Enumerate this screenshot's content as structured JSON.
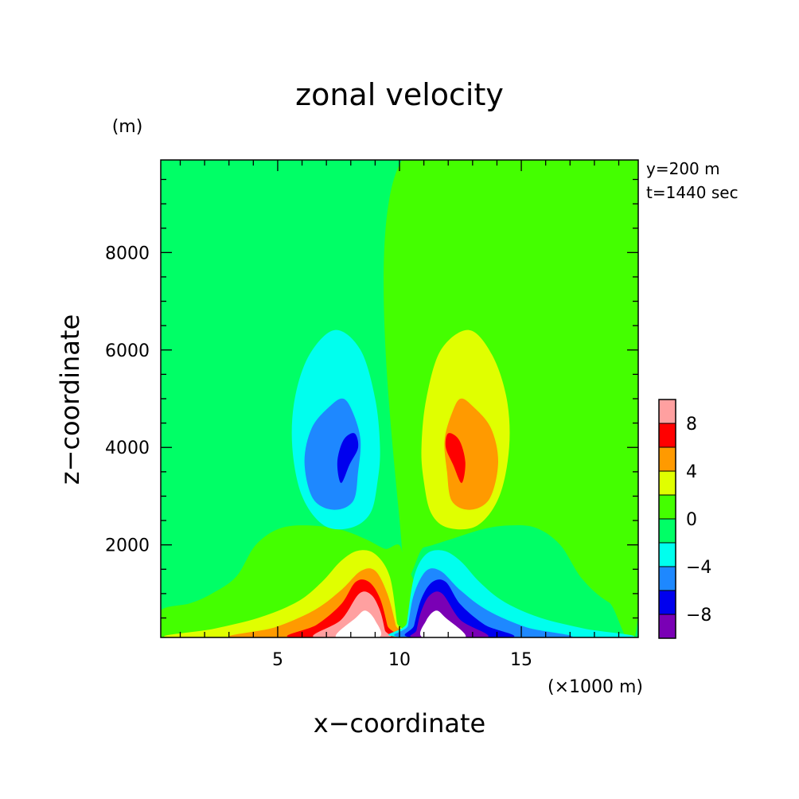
{
  "chart_data": {
    "type": "heatmap",
    "title": "zonal velocity",
    "xlabel": "x−coordinate",
    "ylabel": "z−coordinate",
    "x_unit": "(×1000 m)",
    "y_unit": "(m)",
    "annotations": [
      "y=200 m",
      "t=1440 sec"
    ],
    "xlim": [
      0.2,
      19.8
    ],
    "ylim": [
      100,
      9900
    ],
    "x_ticks": [
      5,
      10,
      15
    ],
    "y_ticks": [
      2000,
      4000,
      6000,
      8000
    ],
    "x_ticklabels": [
      "5",
      "10",
      "15"
    ],
    "y_ticklabels": [
      "2000",
      "4000",
      "6000",
      "8000"
    ],
    "grid": false,
    "legend": "colorbar-right",
    "colorbar": {
      "ticks": [
        8,
        4,
        0,
        -4,
        -8
      ],
      "ticklabels": [
        "8",
        "4",
        "0",
        "−4",
        "−8"
      ],
      "levels": [
        {
          "min": -10,
          "max": -8,
          "color": "#7a00b5"
        },
        {
          "min": -8,
          "max": -6,
          "color": "#0000ee"
        },
        {
          "min": -6,
          "max": -4,
          "color": "#1e88ff"
        },
        {
          "min": -4,
          "max": -2,
          "color": "#00ffee"
        },
        {
          "min": -2,
          "max": 0,
          "color": "#00ff66"
        },
        {
          "min": 0,
          "max": 2,
          "color": "#44ff00"
        },
        {
          "min": 2,
          "max": 4,
          "color": "#e0ff00"
        },
        {
          "min": 4,
          "max": 6,
          "color": "#ff9a00"
        },
        {
          "min": 6,
          "max": 8,
          "color": "#ff0000"
        },
        {
          "min": 8,
          "max": 10,
          "color": "#ffa0a0"
        }
      ]
    },
    "contour_regions": [
      {
        "level": "0 to 2",
        "color": "#44ff00",
        "points": [
          [
            10.1,
            9900
          ],
          [
            19.8,
            9900
          ],
          [
            19.8,
            650
          ],
          [
            18.6,
            820
          ],
          [
            17.5,
            1300
          ],
          [
            16.6,
            2000
          ],
          [
            15.6,
            2350
          ],
          [
            14.5,
            2400
          ],
          [
            13.4,
            2320
          ],
          [
            12.0,
            2100
          ],
          [
            11.0,
            1950
          ],
          [
            10.1,
            1900
          ]
        ]
      },
      {
        "level": "0 to 2",
        "color": "#44ff00",
        "points": [
          [
            0.2,
            650
          ],
          [
            1.4,
            800
          ],
          [
            2.3,
            1000
          ],
          [
            3.3,
            1350
          ],
          [
            4.1,
            2000
          ],
          [
            5.1,
            2340
          ],
          [
            6.3,
            2400
          ],
          [
            7.6,
            2310
          ],
          [
            8.6,
            2120
          ],
          [
            9.4,
            1920
          ],
          [
            10.1,
            1870
          ],
          [
            10.1,
            100
          ],
          [
            0.2,
            100
          ]
        ]
      },
      {
        "level": "2 to 4",
        "color": "#e0ff00",
        "points": [
          [
            12.85,
            6410
          ],
          [
            13.8,
            5900
          ],
          [
            14.4,
            5000
          ],
          [
            14.5,
            4000
          ],
          [
            14.1,
            3000
          ],
          [
            13.2,
            2400
          ],
          [
            12.0,
            2350
          ],
          [
            11.3,
            2650
          ],
          [
            11.0,
            3300
          ],
          [
            10.9,
            4000
          ],
          [
            11.1,
            5000
          ],
          [
            11.7,
            6000
          ]
        ]
      },
      {
        "level": "2 to 4",
        "color": "#e0ff00",
        "points": [
          [
            0.7,
            100
          ],
          [
            2.4,
            280
          ],
          [
            4.2,
            500
          ],
          [
            5.8,
            830
          ],
          [
            6.8,
            1230
          ],
          [
            7.6,
            1670
          ],
          [
            8.3,
            1880
          ],
          [
            9.0,
            1810
          ],
          [
            9.6,
            1350
          ],
          [
            9.9,
            400
          ],
          [
            10.0,
            100
          ]
        ]
      },
      {
        "level": "4 to 6",
        "color": "#ff9a00",
        "points": [
          [
            13.0,
            4850
          ],
          [
            13.75,
            4400
          ],
          [
            14.05,
            3700
          ],
          [
            13.7,
            2950
          ],
          [
            12.9,
            2720
          ],
          [
            12.15,
            2900
          ],
          [
            11.95,
            3500
          ],
          [
            11.85,
            4150
          ],
          [
            12.15,
            4700
          ],
          [
            12.5,
            5000
          ]
        ]
      },
      {
        "level": "4 to 6",
        "color": "#ff9a00",
        "points": [
          [
            3.2,
            100
          ],
          [
            4.9,
            310
          ],
          [
            6.5,
            660
          ],
          [
            7.6,
            1070
          ],
          [
            8.4,
            1460
          ],
          [
            9.0,
            1470
          ],
          [
            9.5,
            1000
          ],
          [
            9.85,
            350
          ],
          [
            9.95,
            100
          ]
        ]
      },
      {
        "level": "6 to 8",
        "color": "#ff0000",
        "points": [
          [
            12.0,
            4290
          ],
          [
            12.45,
            4150
          ],
          [
            12.7,
            3700
          ],
          [
            12.55,
            3270
          ],
          [
            12.2,
            3650
          ],
          [
            11.9,
            4000
          ]
        ]
      },
      {
        "level": "6 to 8",
        "color": "#ff0000",
        "points": [
          [
            5.5,
            100
          ],
          [
            6.6,
            360
          ],
          [
            7.6,
            780
          ],
          [
            8.2,
            1240
          ],
          [
            8.75,
            1240
          ],
          [
            9.2,
            900
          ],
          [
            9.5,
            350
          ],
          [
            9.6,
            100
          ]
        ]
      },
      {
        "level": "8 to 10",
        "color": "#ffa0a0",
        "points": [
          [
            6.5,
            100
          ],
          [
            7.6,
            460
          ],
          [
            8.35,
            1000
          ],
          [
            8.85,
            970
          ],
          [
            9.2,
            650
          ],
          [
            9.4,
            250
          ],
          [
            9.45,
            100
          ]
        ]
      },
      {
        "level": "> 10",
        "color": "#ffffff",
        "points": [
          [
            7.4,
            100
          ],
          [
            8.2,
            500
          ],
          [
            8.6,
            650
          ],
          [
            9.0,
            450
          ],
          [
            9.15,
            100
          ]
        ]
      },
      {
        "level": "-2 to -4",
        "color": "#00ffee",
        "points": [
          [
            7.35,
            6410
          ],
          [
            6.3,
            5900
          ],
          [
            5.7,
            5000
          ],
          [
            5.6,
            4000
          ],
          [
            6.0,
            3000
          ],
          [
            6.9,
            2400
          ],
          [
            8.0,
            2350
          ],
          [
            8.8,
            2650
          ],
          [
            9.1,
            3300
          ],
          [
            9.2,
            4000
          ],
          [
            9.0,
            5000
          ],
          [
            8.4,
            6000
          ]
        ]
      },
      {
        "level": "-2 to -4",
        "color": "#00ffee",
        "points": [
          [
            19.3,
            100
          ],
          [
            17.6,
            280
          ],
          [
            15.8,
            500
          ],
          [
            14.3,
            830
          ],
          [
            13.3,
            1230
          ],
          [
            12.5,
            1670
          ],
          [
            11.8,
            1880
          ],
          [
            11.1,
            1810
          ],
          [
            10.6,
            1350
          ],
          [
            10.3,
            400
          ],
          [
            10.2,
            100
          ]
        ]
      },
      {
        "level": "-4 to -6",
        "color": "#1e88ff",
        "points": [
          [
            7.15,
            4850
          ],
          [
            6.4,
            4400
          ],
          [
            6.1,
            3700
          ],
          [
            6.45,
            2950
          ],
          [
            7.3,
            2720
          ],
          [
            8.1,
            2900
          ],
          [
            8.3,
            3500
          ],
          [
            8.4,
            4150
          ],
          [
            8.1,
            4700
          ],
          [
            7.7,
            5000
          ]
        ]
      },
      {
        "level": "-4 to -6",
        "color": "#1e88ff",
        "points": [
          [
            16.9,
            100
          ],
          [
            15.2,
            310
          ],
          [
            13.6,
            660
          ],
          [
            12.5,
            1070
          ],
          [
            11.7,
            1460
          ],
          [
            11.1,
            1470
          ],
          [
            10.6,
            1000
          ],
          [
            10.35,
            350
          ],
          [
            10.25,
            100
          ]
        ]
      },
      {
        "level": "-6 to -8",
        "color": "#0000ee",
        "points": [
          [
            8.15,
            4290
          ],
          [
            7.7,
            4150
          ],
          [
            7.45,
            3700
          ],
          [
            7.6,
            3270
          ],
          [
            7.95,
            3650
          ],
          [
            8.3,
            4000
          ]
        ]
      },
      {
        "level": "-6 to -8",
        "color": "#0000ee",
        "points": [
          [
            14.6,
            100
          ],
          [
            13.5,
            360
          ],
          [
            12.5,
            780
          ],
          [
            11.9,
            1240
          ],
          [
            11.35,
            1240
          ],
          [
            10.9,
            900
          ],
          [
            10.6,
            350
          ],
          [
            10.5,
            100
          ]
        ]
      },
      {
        "level": "-8 to -10",
        "color": "#7a00b5",
        "points": [
          [
            13.6,
            100
          ],
          [
            12.5,
            460
          ],
          [
            11.75,
            1000
          ],
          [
            11.25,
            970
          ],
          [
            10.9,
            650
          ],
          [
            10.7,
            250
          ],
          [
            10.65,
            100
          ]
        ]
      },
      {
        "level": "< -10",
        "color": "#ffffff",
        "points": [
          [
            12.7,
            100
          ],
          [
            11.9,
            500
          ],
          [
            11.5,
            650
          ],
          [
            11.1,
            450
          ],
          [
            10.95,
            100
          ]
        ]
      }
    ]
  }
}
